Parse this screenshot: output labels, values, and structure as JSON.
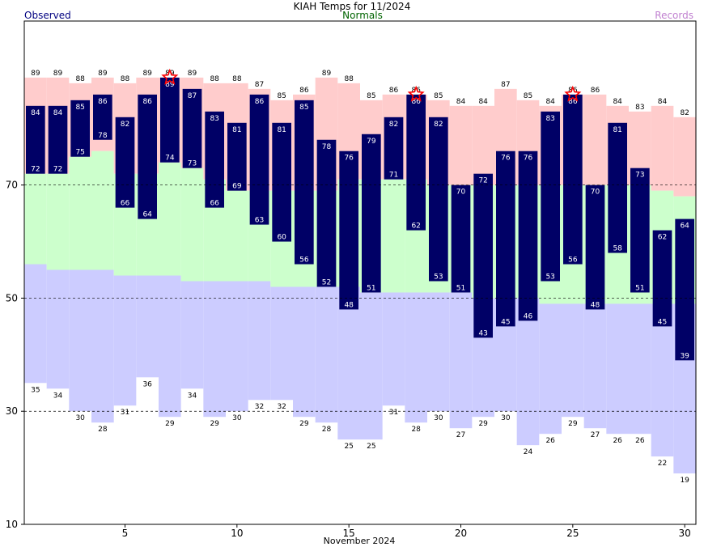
{
  "chart_data": {
    "type": "bar",
    "title": "KIAH Temps for 11/2024",
    "xlabel": "November 2024",
    "ylabel": "",
    "legend": {
      "observed": "Observed",
      "normals": "Normals",
      "records": "Records",
      "observed_color": "#000080",
      "normals_color": "#006400",
      "records_color": "#c080d0"
    },
    "colors": {
      "observed_bar": "#000066",
      "normal_band": "#ccffcc",
      "record_high_band": "#ffcccc",
      "record_low_band": "#ccccff",
      "record_star": "#ff0000",
      "grid": "#000000"
    },
    "ylim": [
      10,
      99
    ],
    "yticks": [
      10,
      30,
      50,
      70
    ],
    "xticks": [
      5,
      10,
      15,
      20,
      25,
      30
    ],
    "days": [
      1,
      2,
      3,
      4,
      5,
      6,
      7,
      8,
      9,
      10,
      11,
      12,
      13,
      14,
      15,
      16,
      17,
      18,
      19,
      20,
      21,
      22,
      23,
      24,
      25,
      26,
      27,
      28,
      29,
      30
    ],
    "obs_high": [
      84,
      84,
      85,
      86,
      82,
      86,
      89,
      87,
      83,
      81,
      86,
      81,
      85,
      78,
      76,
      79,
      82,
      86,
      82,
      70,
      72,
      76,
      76,
      83,
      86,
      70,
      81,
      73,
      62,
      64
    ],
    "obs_low": [
      72,
      72,
      75,
      78,
      66,
      64,
      74,
      73,
      66,
      69,
      63,
      60,
      56,
      52,
      48,
      51,
      71,
      62,
      53,
      51,
      43,
      45,
      46,
      53,
      56,
      48,
      58,
      51,
      45,
      39
    ],
    "normal_high": [
      72,
      72,
      75,
      76,
      72,
      72,
      74,
      73,
      71,
      69,
      69,
      69,
      69,
      69,
      71,
      71,
      71,
      71,
      70,
      70,
      70,
      70,
      70,
      70,
      70,
      70,
      70,
      70,
      69,
      68
    ],
    "normal_low": [
      56,
      55,
      55,
      55,
      54,
      54,
      54,
      53,
      53,
      53,
      53,
      52,
      52,
      52,
      52,
      51,
      51,
      51,
      51,
      51,
      50,
      50,
      50,
      49,
      49,
      49,
      49,
      49,
      49,
      49
    ],
    "record_high": [
      89,
      89,
      88,
      89,
      88,
      89,
      89,
      89,
      88,
      88,
      87,
      85,
      86,
      89,
      88,
      85,
      86,
      86,
      85,
      84,
      84,
      87,
      85,
      84,
      86,
      86,
      84,
      83,
      84,
      82
    ],
    "record_low": [
      35,
      34,
      30,
      28,
      31,
      36,
      29,
      34,
      29,
      30,
      32,
      32,
      29,
      28,
      25,
      25,
      31,
      28,
      30,
      27,
      29,
      30,
      24,
      26,
      29,
      27,
      26,
      26,
      22,
      19
    ],
    "record_set_days": [
      7,
      18,
      25
    ]
  }
}
